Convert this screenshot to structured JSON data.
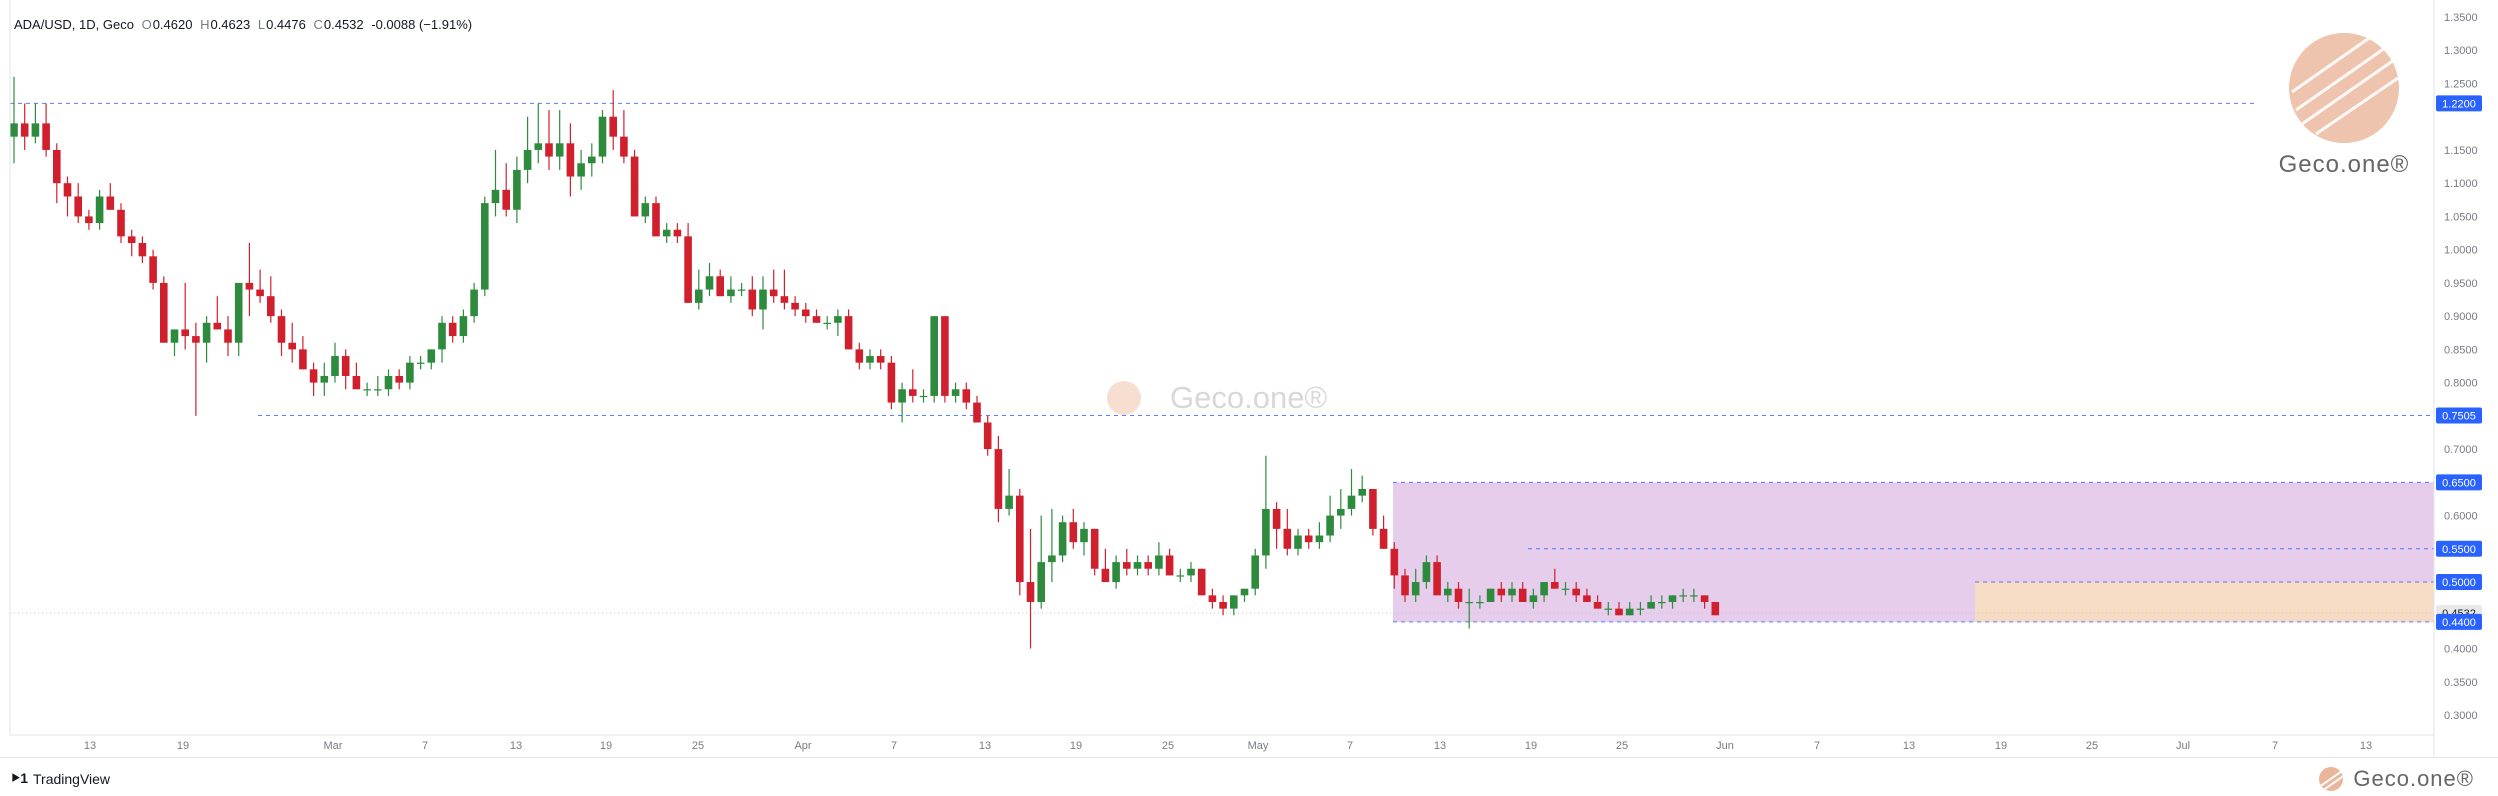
{
  "header": {
    "symbol": "ADA/USD, 1D, Geco",
    "o_label": "O",
    "o_value": "0.4620",
    "h_label": "H",
    "h_value": "0.4623",
    "l_label": "L",
    "l_value": "0.4476",
    "c_label": "C",
    "c_value": "0.4532",
    "change": "-0.0088 (−1.91%)"
  },
  "footer": {
    "tradingview": "TradingView",
    "geco_brand": "Geco.one®"
  },
  "watermark": {
    "text": "Geco.one®"
  },
  "colors": {
    "up": "#2e8b3e",
    "down": "#d0202e",
    "level_line": "#2962ff",
    "range_purple": "#e6cdec",
    "range_peach": "#f6dcc4",
    "brand": "#eab59a"
  },
  "chart_data": {
    "type": "candlestick",
    "ylim": [
      0.3,
      1.35
    ],
    "y_ticks": [
      "1.3500",
      "1.3000",
      "1.2500",
      "1.1500",
      "1.1000",
      "1.0500",
      "1.0000",
      "0.9500",
      "0.9000",
      "0.8500",
      "0.8000",
      "0.7000",
      "0.6000",
      "0.4000",
      "0.3500",
      "0.3000"
    ],
    "x_ticks": [
      "13",
      "19",
      "Mar",
      "7",
      "13",
      "19",
      "25",
      "Apr",
      "7",
      "13",
      "19",
      "25",
      "May",
      "7",
      "13",
      "19",
      "25",
      "Jun",
      "7",
      "13",
      "19",
      "25",
      "Jul",
      "7",
      "13"
    ],
    "level_labels": [
      {
        "value": 1.22,
        "label": "1.2200"
      },
      {
        "value": 0.7505,
        "label": "0.7505"
      },
      {
        "value": 0.65,
        "label": "0.6500"
      },
      {
        "value": 0.55,
        "label": "0.5500"
      },
      {
        "value": 0.5,
        "label": "0.5000"
      },
      {
        "value": 0.4532,
        "label": "0.4532"
      },
      {
        "value": 0.44,
        "label": "0.4400"
      }
    ],
    "ranges": [
      {
        "name": "purple",
        "from": 0.44,
        "to": 0.65
      },
      {
        "name": "peach",
        "from": 0.44,
        "to": 0.5
      }
    ],
    "candles": [
      [
        1.17,
        1.26,
        1.13,
        1.19
      ],
      [
        1.19,
        1.22,
        1.15,
        1.17
      ],
      [
        1.17,
        1.22,
        1.16,
        1.19
      ],
      [
        1.19,
        1.22,
        1.14,
        1.15
      ],
      [
        1.15,
        1.16,
        1.07,
        1.1
      ],
      [
        1.1,
        1.11,
        1.05,
        1.08
      ],
      [
        1.08,
        1.1,
        1.04,
        1.05
      ],
      [
        1.05,
        1.06,
        1.03,
        1.04
      ],
      [
        1.04,
        1.09,
        1.03,
        1.08
      ],
      [
        1.08,
        1.1,
        1.06,
        1.06
      ],
      [
        1.06,
        1.07,
        1.01,
        1.02
      ],
      [
        1.02,
        1.03,
        0.99,
        1.01
      ],
      [
        1.01,
        1.02,
        0.98,
        0.99
      ],
      [
        0.99,
        1.0,
        0.94,
        0.95
      ],
      [
        0.95,
        0.96,
        0.86,
        0.86
      ],
      [
        0.86,
        0.88,
        0.84,
        0.88
      ],
      [
        0.88,
        0.95,
        0.85,
        0.87
      ],
      [
        0.87,
        0.89,
        0.75,
        0.86
      ],
      [
        0.86,
        0.9,
        0.83,
        0.89
      ],
      [
        0.89,
        0.93,
        0.88,
        0.88
      ],
      [
        0.88,
        0.9,
        0.84,
        0.86
      ],
      [
        0.86,
        0.95,
        0.84,
        0.95
      ],
      [
        0.95,
        1.01,
        0.9,
        0.94
      ],
      [
        0.94,
        0.97,
        0.92,
        0.93
      ],
      [
        0.93,
        0.96,
        0.89,
        0.9
      ],
      [
        0.9,
        0.91,
        0.84,
        0.86
      ],
      [
        0.86,
        0.89,
        0.83,
        0.85
      ],
      [
        0.85,
        0.87,
        0.82,
        0.82
      ],
      [
        0.82,
        0.83,
        0.78,
        0.8
      ],
      [
        0.8,
        0.83,
        0.78,
        0.81
      ],
      [
        0.81,
        0.86,
        0.8,
        0.84
      ],
      [
        0.84,
        0.85,
        0.79,
        0.81
      ],
      [
        0.81,
        0.83,
        0.79,
        0.79
      ],
      [
        0.79,
        0.8,
        0.78,
        0.79
      ],
      [
        0.79,
        0.81,
        0.78,
        0.79
      ],
      [
        0.79,
        0.82,
        0.78,
        0.81
      ],
      [
        0.81,
        0.82,
        0.79,
        0.8
      ],
      [
        0.8,
        0.84,
        0.79,
        0.83
      ],
      [
        0.83,
        0.84,
        0.82,
        0.83
      ],
      [
        0.83,
        0.85,
        0.82,
        0.85
      ],
      [
        0.85,
        0.9,
        0.83,
        0.89
      ],
      [
        0.89,
        0.9,
        0.86,
        0.87
      ],
      [
        0.87,
        0.91,
        0.86,
        0.9
      ],
      [
        0.9,
        0.95,
        0.89,
        0.94
      ],
      [
        0.94,
        1.08,
        0.93,
        1.07
      ],
      [
        1.07,
        1.15,
        1.05,
        1.09
      ],
      [
        1.09,
        1.13,
        1.05,
        1.06
      ],
      [
        1.06,
        1.14,
        1.04,
        1.12
      ],
      [
        1.12,
        1.2,
        1.1,
        1.15
      ],
      [
        1.15,
        1.22,
        1.13,
        1.16
      ],
      [
        1.16,
        1.21,
        1.12,
        1.14
      ],
      [
        1.14,
        1.21,
        1.12,
        1.16
      ],
      [
        1.16,
        1.19,
        1.08,
        1.11
      ],
      [
        1.11,
        1.15,
        1.09,
        1.13
      ],
      [
        1.13,
        1.16,
        1.11,
        1.14
      ],
      [
        1.14,
        1.21,
        1.13,
        1.2
      ],
      [
        1.2,
        1.24,
        1.15,
        1.17
      ],
      [
        1.17,
        1.21,
        1.13,
        1.14
      ],
      [
        1.14,
        1.15,
        1.05,
        1.05
      ],
      [
        1.05,
        1.08,
        1.04,
        1.07
      ],
      [
        1.07,
        1.08,
        1.02,
        1.02
      ],
      [
        1.02,
        1.04,
        1.01,
        1.03
      ],
      [
        1.03,
        1.04,
        1.01,
        1.02
      ],
      [
        1.02,
        1.04,
        0.92,
        0.92
      ],
      [
        0.92,
        0.97,
        0.91,
        0.94
      ],
      [
        0.94,
        0.98,
        0.93,
        0.96
      ],
      [
        0.96,
        0.97,
        0.93,
        0.93
      ],
      [
        0.93,
        0.96,
        0.92,
        0.94
      ],
      [
        0.94,
        0.95,
        0.93,
        0.94
      ],
      [
        0.94,
        0.96,
        0.9,
        0.91
      ],
      [
        0.91,
        0.96,
        0.88,
        0.94
      ],
      [
        0.94,
        0.97,
        0.92,
        0.93
      ],
      [
        0.93,
        0.97,
        0.91,
        0.92
      ],
      [
        0.92,
        0.93,
        0.9,
        0.91
      ],
      [
        0.91,
        0.92,
        0.89,
        0.9
      ],
      [
        0.9,
        0.91,
        0.89,
        0.89
      ],
      [
        0.89,
        0.9,
        0.88,
        0.89
      ],
      [
        0.89,
        0.91,
        0.87,
        0.9
      ],
      [
        0.9,
        0.91,
        0.85,
        0.85
      ],
      [
        0.85,
        0.86,
        0.82,
        0.83
      ],
      [
        0.83,
        0.85,
        0.82,
        0.84
      ],
      [
        0.84,
        0.85,
        0.82,
        0.83
      ],
      [
        0.83,
        0.84,
        0.76,
        0.77
      ],
      [
        0.77,
        0.8,
        0.74,
        0.79
      ],
      [
        0.79,
        0.82,
        0.77,
        0.78
      ],
      [
        0.78,
        0.79,
        0.77,
        0.78
      ],
      [
        0.78,
        0.9,
        0.77,
        0.9
      ],
      [
        0.9,
        0.9,
        0.77,
        0.78
      ],
      [
        0.78,
        0.8,
        0.77,
        0.79
      ],
      [
        0.79,
        0.8,
        0.76,
        0.77
      ],
      [
        0.77,
        0.78,
        0.74,
        0.74
      ],
      [
        0.74,
        0.75,
        0.69,
        0.7
      ],
      [
        0.7,
        0.72,
        0.59,
        0.61
      ],
      [
        0.61,
        0.67,
        0.6,
        0.63
      ],
      [
        0.63,
        0.64,
        0.48,
        0.5
      ],
      [
        0.5,
        0.58,
        0.4,
        0.47
      ],
      [
        0.47,
        0.6,
        0.46,
        0.53
      ],
      [
        0.53,
        0.61,
        0.5,
        0.54
      ],
      [
        0.54,
        0.6,
        0.53,
        0.59
      ],
      [
        0.59,
        0.61,
        0.55,
        0.56
      ],
      [
        0.56,
        0.59,
        0.54,
        0.58
      ],
      [
        0.58,
        0.58,
        0.51,
        0.52
      ],
      [
        0.52,
        0.55,
        0.5,
        0.5
      ],
      [
        0.5,
        0.54,
        0.49,
        0.53
      ],
      [
        0.53,
        0.55,
        0.51,
        0.52
      ],
      [
        0.52,
        0.54,
        0.51,
        0.53
      ],
      [
        0.53,
        0.54,
        0.51,
        0.52
      ],
      [
        0.52,
        0.56,
        0.51,
        0.54
      ],
      [
        0.54,
        0.55,
        0.51,
        0.51
      ],
      [
        0.51,
        0.52,
        0.5,
        0.51
      ],
      [
        0.51,
        0.53,
        0.5,
        0.52
      ],
      [
        0.52,
        0.52,
        0.48,
        0.48
      ],
      [
        0.48,
        0.49,
        0.46,
        0.47
      ],
      [
        0.47,
        0.48,
        0.45,
        0.46
      ],
      [
        0.46,
        0.48,
        0.45,
        0.48
      ],
      [
        0.48,
        0.49,
        0.47,
        0.49
      ],
      [
        0.49,
        0.55,
        0.48,
        0.54
      ],
      [
        0.54,
        0.69,
        0.52,
        0.61
      ],
      [
        0.61,
        0.62,
        0.55,
        0.58
      ],
      [
        0.58,
        0.61,
        0.54,
        0.55
      ],
      [
        0.55,
        0.58,
        0.54,
        0.57
      ],
      [
        0.57,
        0.58,
        0.55,
        0.56
      ],
      [
        0.56,
        0.59,
        0.55,
        0.57
      ],
      [
        0.57,
        0.63,
        0.56,
        0.6
      ],
      [
        0.6,
        0.64,
        0.58,
        0.61
      ],
      [
        0.61,
        0.67,
        0.6,
        0.63
      ],
      [
        0.63,
        0.66,
        0.62,
        0.64
      ],
      [
        0.64,
        0.64,
        0.57,
        0.58
      ],
      [
        0.58,
        0.6,
        0.55,
        0.55
      ],
      [
        0.55,
        0.56,
        0.49,
        0.51
      ],
      [
        0.51,
        0.52,
        0.47,
        0.48
      ],
      [
        0.48,
        0.52,
        0.47,
        0.5
      ],
      [
        0.5,
        0.54,
        0.49,
        0.53
      ],
      [
        0.53,
        0.54,
        0.48,
        0.48
      ],
      [
        0.48,
        0.5,
        0.47,
        0.49
      ],
      [
        0.49,
        0.5,
        0.46,
        0.47
      ],
      [
        0.47,
        0.49,
        0.43,
        0.47
      ],
      [
        0.47,
        0.48,
        0.46,
        0.47
      ],
      [
        0.47,
        0.49,
        0.47,
        0.49
      ],
      [
        0.49,
        0.5,
        0.47,
        0.48
      ],
      [
        0.48,
        0.5,
        0.47,
        0.49
      ],
      [
        0.49,
        0.5,
        0.47,
        0.47
      ],
      [
        0.47,
        0.49,
        0.46,
        0.48
      ],
      [
        0.48,
        0.5,
        0.47,
        0.5
      ],
      [
        0.5,
        0.52,
        0.49,
        0.49
      ],
      [
        0.49,
        0.5,
        0.48,
        0.49
      ],
      [
        0.49,
        0.5,
        0.47,
        0.48
      ],
      [
        0.48,
        0.49,
        0.47,
        0.47
      ],
      [
        0.47,
        0.48,
        0.46,
        0.46
      ],
      [
        0.46,
        0.47,
        0.45,
        0.46
      ],
      [
        0.46,
        0.47,
        0.45,
        0.45
      ],
      [
        0.45,
        0.47,
        0.45,
        0.46
      ],
      [
        0.46,
        0.47,
        0.45,
        0.46
      ],
      [
        0.46,
        0.48,
        0.46,
        0.47
      ],
      [
        0.47,
        0.48,
        0.46,
        0.47
      ],
      [
        0.47,
        0.48,
        0.46,
        0.48
      ],
      [
        0.48,
        0.49,
        0.47,
        0.48
      ],
      [
        0.48,
        0.49,
        0.47,
        0.48
      ],
      [
        0.48,
        0.48,
        0.46,
        0.47
      ],
      [
        0.47,
        0.47,
        0.45,
        0.45
      ]
    ]
  }
}
